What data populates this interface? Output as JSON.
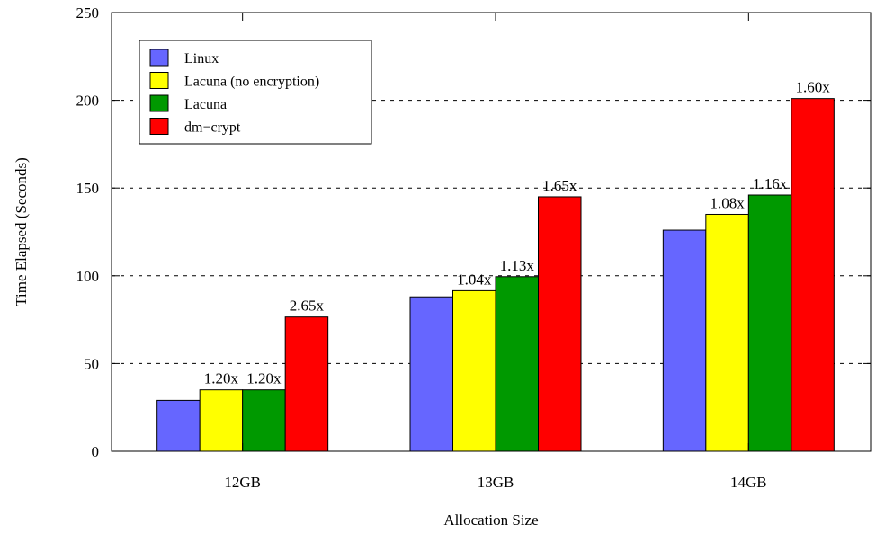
{
  "chart_data": {
    "type": "bar",
    "xlabel": "Allocation Size",
    "ylabel": "Time Elapsed (Seconds)",
    "ylim": [
      0,
      250
    ],
    "yticks": [
      0,
      50,
      100,
      150,
      200,
      250
    ],
    "grid": "horizontal dashed",
    "legend_position": "top-left",
    "categories": [
      "12GB",
      "13GB",
      "14GB"
    ],
    "series": [
      {
        "name": "Linux",
        "color": "#6666ff",
        "values": [
          29,
          88,
          126
        ],
        "labels": [
          "",
          "",
          ""
        ]
      },
      {
        "name": "Lacuna (no encryption)",
        "color": "#ffff00",
        "values": [
          35,
          91.5,
          135
        ],
        "labels": [
          "1.20x",
          "1.04x",
          "1.08x"
        ]
      },
      {
        "name": "Lacuna",
        "color": "#009900",
        "values": [
          35,
          99.5,
          146
        ],
        "labels": [
          "1.20x",
          "1.13x",
          "1.16x"
        ]
      },
      {
        "name": "dm−crypt",
        "color": "#ff0000",
        "values": [
          76.5,
          145,
          201
        ],
        "labels": [
          "2.65x",
          "1.65x",
          "1.60x"
        ]
      }
    ]
  }
}
